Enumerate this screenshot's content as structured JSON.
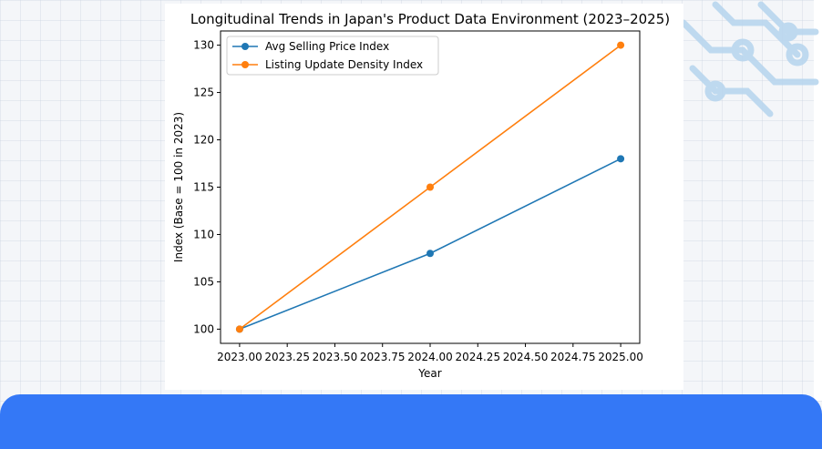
{
  "chart_data": {
    "type": "line",
    "title": "Longitudinal Trends in Japan's Product Data Environment (2023–2025)",
    "xlabel": "Year",
    "ylabel": "Index (Base = 100 in 2023)",
    "x": [
      2023,
      2024,
      2025
    ],
    "xlim": [
      2022.9,
      2025.1
    ],
    "ylim": [
      98.5,
      131.5
    ],
    "x_ticks": [
      2023.0,
      2023.25,
      2023.5,
      2023.75,
      2024.0,
      2024.25,
      2024.5,
      2024.75,
      2025.0
    ],
    "x_tick_labels": [
      "2023.00",
      "2023.25",
      "2023.50",
      "2023.75",
      "2024.00",
      "2024.25",
      "2024.50",
      "2024.75",
      "2025.00"
    ],
    "y_ticks": [
      100,
      105,
      110,
      115,
      120,
      125,
      130
    ],
    "y_tick_labels": [
      "100",
      "105",
      "110",
      "115",
      "120",
      "125",
      "130"
    ],
    "grid": false,
    "legend_position": "top-left",
    "series": [
      {
        "name": "Avg Selling Price Index",
        "values": [
          100,
          108,
          118
        ],
        "color": "#1f77b4",
        "marker": "circle"
      },
      {
        "name": "Listing Update Density Index",
        "values": [
          100,
          115,
          130
        ],
        "color": "#ff7f0e",
        "marker": "circle"
      }
    ]
  },
  "theme": {
    "accent_color": "#3478f6",
    "decoration_color": "#b9d6ee"
  }
}
